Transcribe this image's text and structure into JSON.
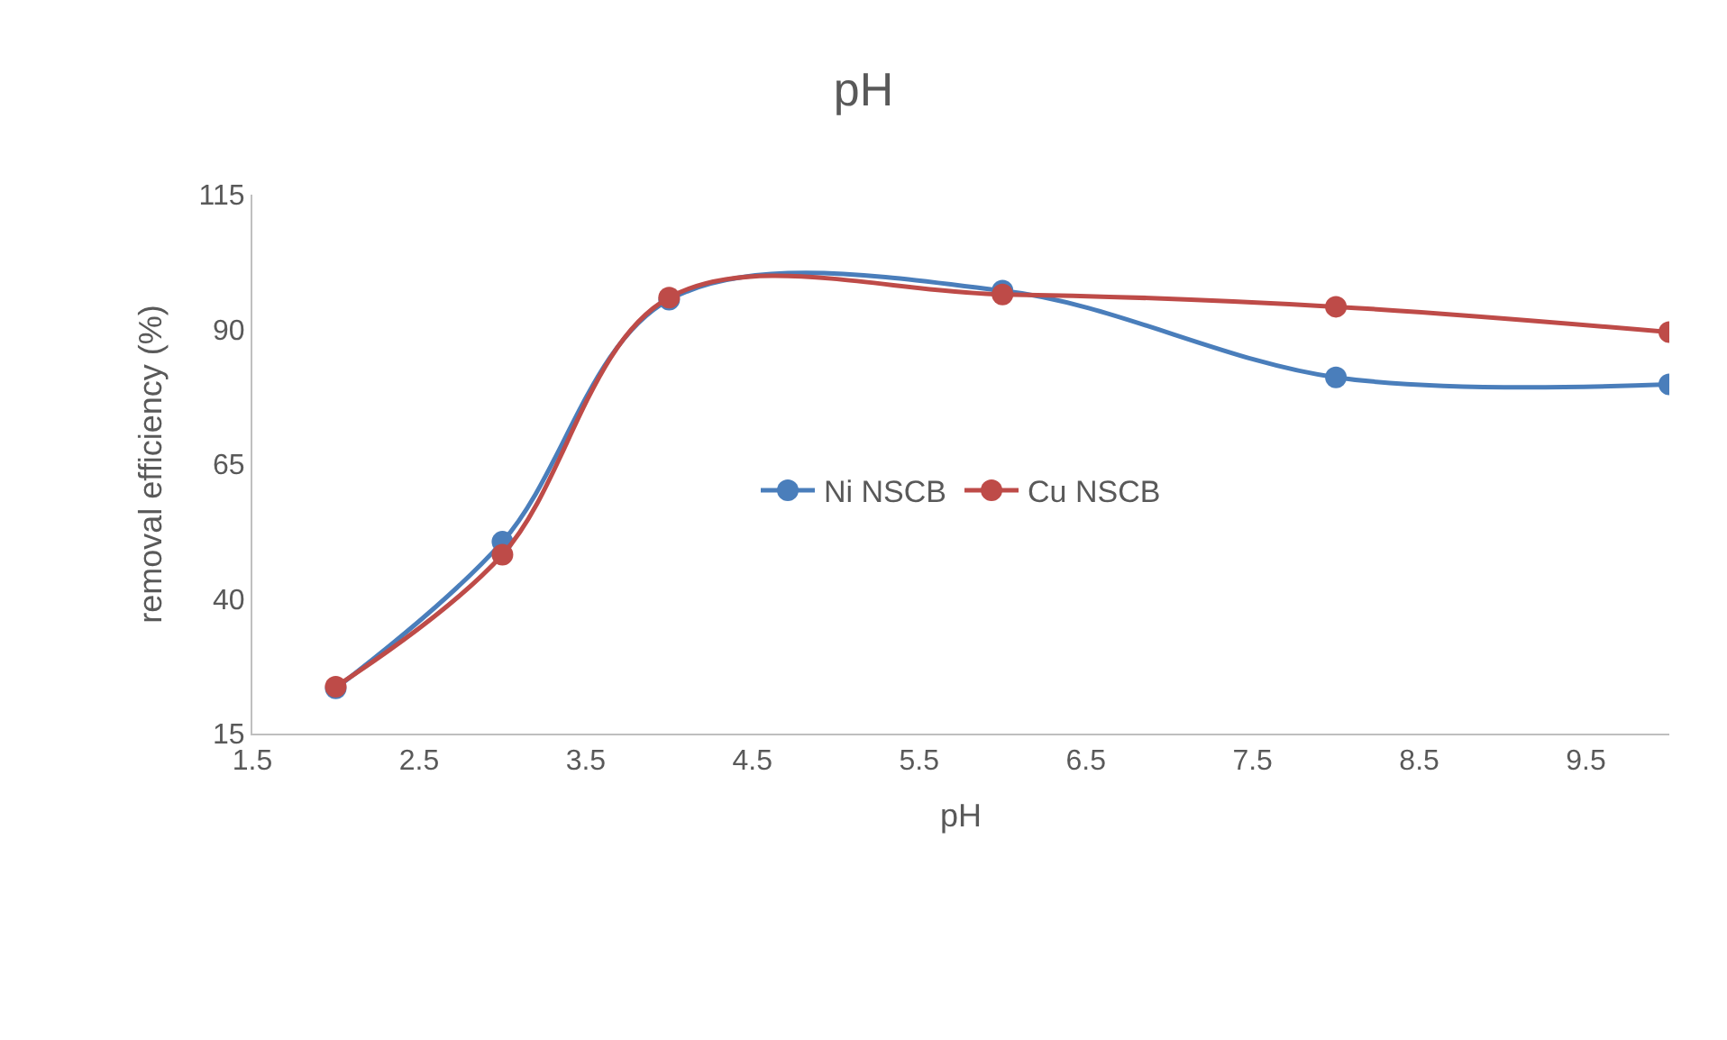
{
  "chart_data": {
    "type": "line",
    "title": "pH",
    "xlabel": "pH",
    "ylabel": "removal efficiency (%)",
    "x": [
      2,
      3,
      4,
      6,
      8,
      10
    ],
    "series": [
      {
        "name": "Ni NSCB",
        "color": "#4a7ebb",
        "values": [
          23.4,
          50.6,
          95.5,
          97.2,
          81.1,
          79.8
        ]
      },
      {
        "name": "Cu NSCB",
        "color": "#be4b48",
        "values": [
          23.7,
          48.2,
          95.9,
          96.5,
          94.2,
          89.5
        ]
      }
    ],
    "xlim": [
      1.5,
      10
    ],
    "xticks": [
      1.5,
      2.5,
      3.5,
      4.5,
      5.5,
      6.5,
      7.5,
      8.5,
      9.5
    ],
    "ylim": [
      15,
      115
    ],
    "yticks": [
      15,
      40,
      65,
      90,
      115
    ],
    "legend": "center",
    "marker": "circle",
    "line_style": "solid"
  }
}
